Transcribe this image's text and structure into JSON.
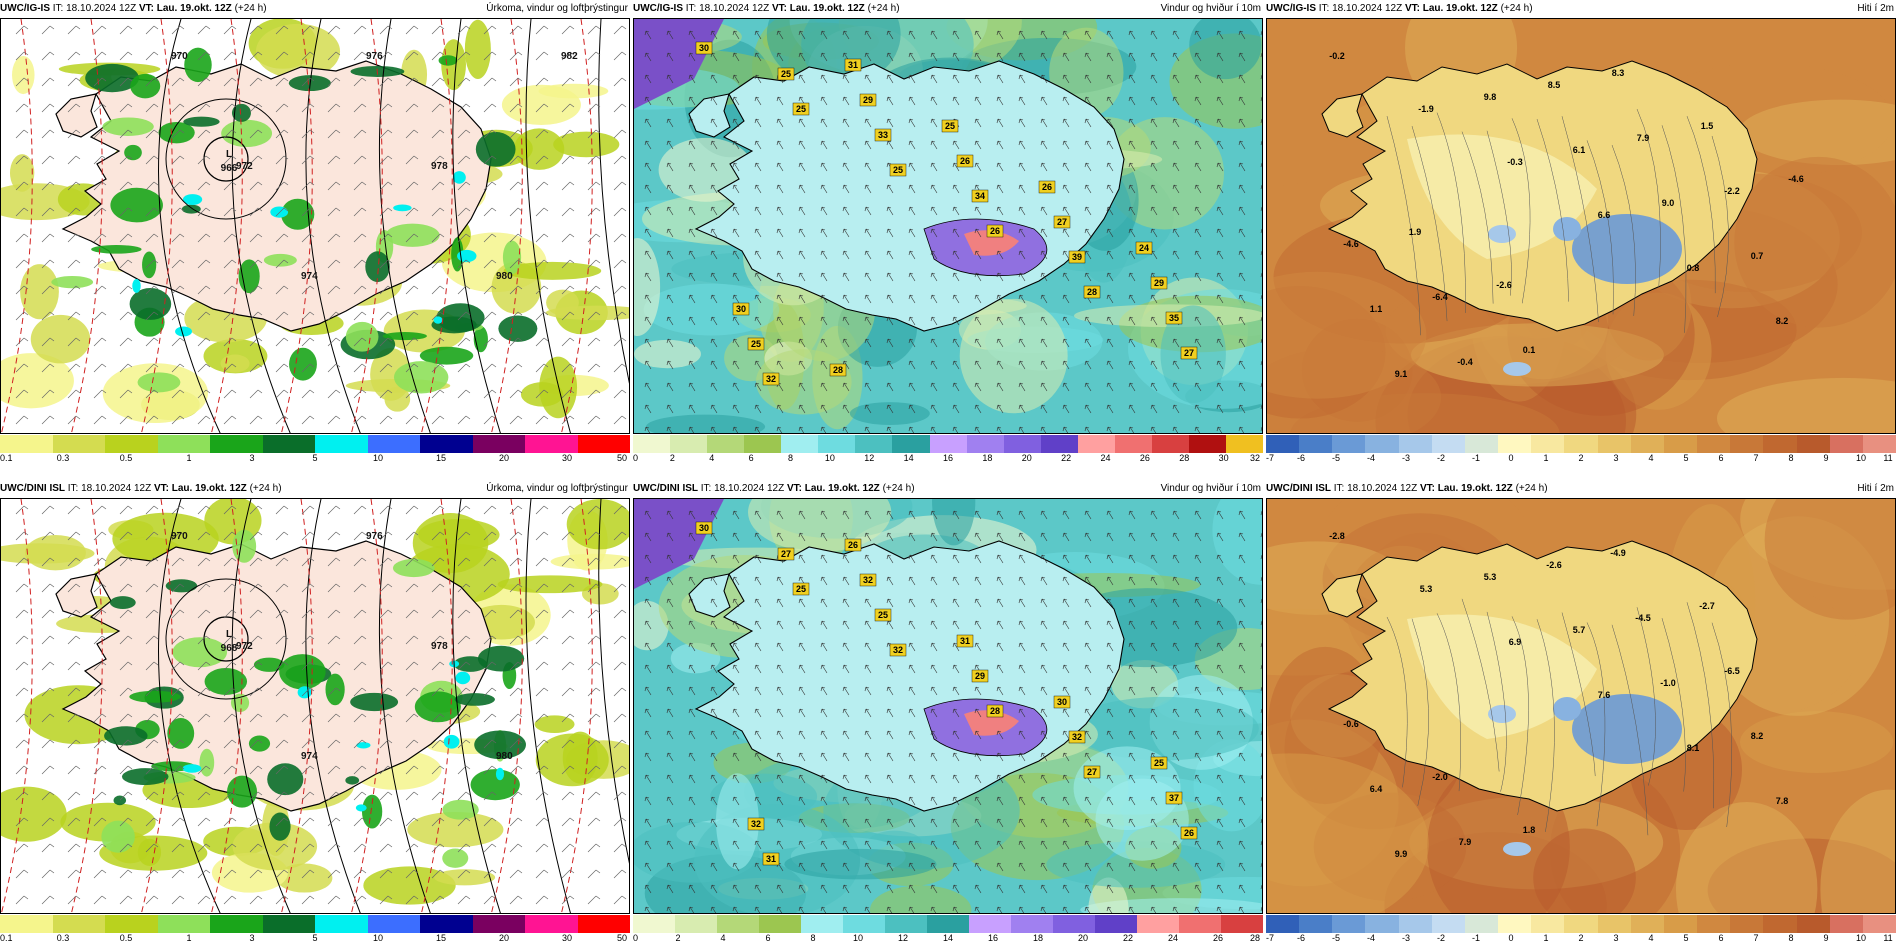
{
  "colors": {
    "precip": [
      "#f5f58c",
      "#d4dc50",
      "#b9d21e",
      "#8ee05a",
      "#1aa51a",
      "#0a6e2a",
      "#00f0f0",
      "#3c6eff",
      "#000090",
      "#7a0060",
      "#ff1493",
      "#ff0000"
    ],
    "wind": [
      "#f0f8d0",
      "#d8ecb0",
      "#b4d878",
      "#9cc650",
      "#a0eef0",
      "#6edce0",
      "#4cc0c0",
      "#2aa0a0",
      "#c8a0ff",
      "#a080f0",
      "#8060e0",
      "#6040c8",
      "#ffa0a0",
      "#f07070",
      "#d84040",
      "#b01010",
      "#f0c020"
    ],
    "temp": [
      "#3060b8",
      "#4a7ec8",
      "#6a9ad6",
      "#88b2e0",
      "#a6c8ea",
      "#c4dcf2",
      "#d8e8d8",
      "#fff8c0",
      "#f8e8a0",
      "#f0d880",
      "#e8c468",
      "#e0b058",
      "#d89c48",
      "#d08840",
      "#c87838",
      "#c06830",
      "#b85a2c",
      "#d87060",
      "#e89080"
    ],
    "precip_ticks": [
      "0.1",
      "0.3",
      "0.5",
      "1",
      "3",
      "5",
      "10",
      "15",
      "20",
      "30",
      "50"
    ],
    "wind_ticks_top": [
      "0",
      "2",
      "4",
      "6",
      "8",
      "10",
      "12",
      "14",
      "16",
      "18",
      "20",
      "22",
      "24",
      "26",
      "28",
      "30",
      "32"
    ],
    "wind_ticks_bottom": [
      "0",
      "2",
      "4",
      "6",
      "8",
      "10",
      "12",
      "14",
      "16",
      "18",
      "20",
      "22",
      "24",
      "26",
      "28"
    ],
    "temp_ticks": [
      "-7",
      "-6",
      "-5",
      "-4",
      "-3",
      "-2",
      "-1",
      "0",
      "1",
      "2",
      "3",
      "4",
      "5",
      "6",
      "7",
      "8",
      "9",
      "10",
      "11"
    ]
  },
  "panels": [
    {
      "model": "UWC/IG-IS",
      "it": "IT: 18.10.2024 12Z",
      "vt": "VT: Lau. 19.okt. 12Z",
      "lead": "(+24 h)",
      "title": "Úrkoma, vindur og loftþrýstingur",
      "type": "precip"
    },
    {
      "model": "UWC/IG-IS",
      "it": "IT: 18.10.2024 12Z",
      "vt": "VT: Lau. 19.okt. 12Z",
      "lead": "(+24 h)",
      "title": "Vindur og hviður í 10m",
      "type": "wind"
    },
    {
      "model": "UWC/IG-IS",
      "it": "IT: 18.10.2024 12Z",
      "vt": "VT: Lau. 19.okt. 12Z",
      "lead": "(+24 h)",
      "title": "Hiti í 2m",
      "type": "temp"
    },
    {
      "model": "UWC/DINI ISL",
      "it": "IT: 18.10.2024 12Z",
      "vt": "VT: Lau. 19.okt. 12Z",
      "lead": "(+24 h)",
      "title": "Úrkoma, vindur og loftþrýstingur",
      "type": "precip"
    },
    {
      "model": "UWC/DINI ISL",
      "it": "IT: 18.10.2024 12Z",
      "vt": "VT: Lau. 19.okt. 12Z",
      "lead": "(+24 h)",
      "title": "Vindur og hviður í 10m",
      "type": "wind"
    },
    {
      "model": "UWC/DINI ISL",
      "it": "IT: 18.10.2024 12Z",
      "vt": "VT: Lau. 19.okt. 12Z",
      "lead": "(+24 h)",
      "title": "Hiti í 2m",
      "type": "temp"
    }
  ],
  "labels": {
    "p0": {
      "low": "L",
      "low_val": "966",
      "isobars": [
        "970",
        "972",
        "974",
        "976",
        "978",
        "980",
        "982"
      ]
    },
    "p3": {
      "low": "L",
      "low_val": "968",
      "isobars": [
        "970",
        "972",
        "974",
        "976",
        "978",
        "980"
      ]
    },
    "p1": [
      "30",
      "25",
      "25",
      "26",
      "28",
      "27",
      "25",
      "33",
      "34",
      "39",
      "35",
      "32",
      "29",
      "26",
      "27",
      "29",
      "25",
      "31",
      "25",
      "26",
      "24",
      "30",
      "28"
    ],
    "p4": [
      "30",
      "25",
      "32",
      "28",
      "27",
      "26",
      "27",
      "25",
      "29",
      "32",
      "37",
      "31",
      "32",
      "31",
      "30",
      "25",
      "32",
      "26"
    ],
    "p2": [
      "-0.2",
      "-1.9",
      "-0.3",
      "6.6",
      "0.8",
      "8.2",
      "9.1",
      "9.8",
      "6.1",
      "9.0",
      "0.7",
      "1.1",
      "-0.4",
      "8.5",
      "7.9",
      "-2.2",
      "-4.6",
      "-6.4",
      "0.1",
      "8.3",
      "1.5",
      "-4.6",
      "1.9",
      "-2.6"
    ],
    "p5": [
      "-2.8",
      "5.3",
      "6.9",
      "7.6",
      "8.1",
      "7.8",
      "9.9",
      "5.3",
      "5.7",
      "-1.0",
      "8.2",
      "6.4",
      "7.9",
      "-2.6",
      "-4.5",
      "-6.5",
      "-0.6",
      "-2.0",
      "1.8",
      "-4.9",
      "-2.7"
    ]
  }
}
